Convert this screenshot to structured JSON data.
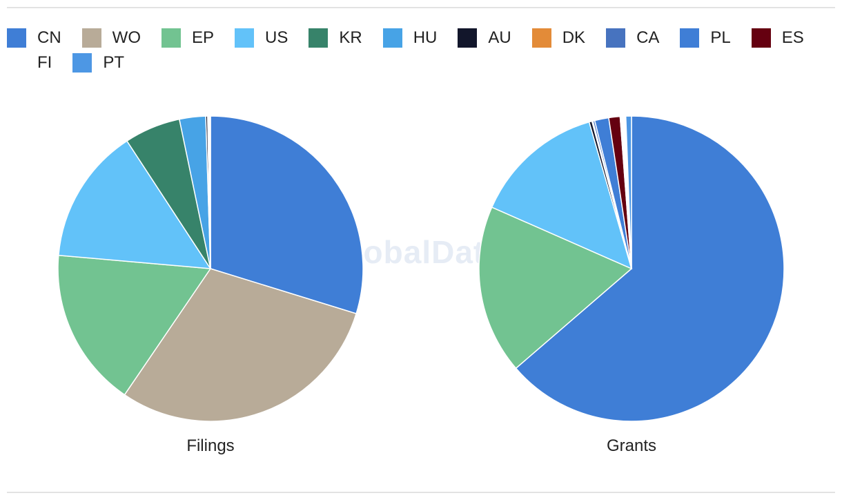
{
  "watermark": "GlobalData",
  "legend": [
    {
      "code": "CN",
      "color": "#3f7ed6"
    },
    {
      "code": "WO",
      "color": "#b8ab98"
    },
    {
      "code": "EP",
      "color": "#72c391"
    },
    {
      "code": "US",
      "color": "#62c2f9"
    },
    {
      "code": "KR",
      "color": "#37836a"
    },
    {
      "code": "HU",
      "color": "#47a3e6"
    },
    {
      "code": "AU",
      "color": "#12162b"
    },
    {
      "code": "DK",
      "color": "#e38b38"
    },
    {
      "code": "CA",
      "color": "#4773bf"
    },
    {
      "code": "PL",
      "color": "#3f7ed6"
    },
    {
      "code": "ES",
      "color": "#650010"
    },
    {
      "code": "FI",
      "color": "#ffffff"
    },
    {
      "code": "PT",
      "color": "#4d97e4"
    }
  ],
  "chart_data": [
    {
      "type": "pie",
      "title": "Filings",
      "slices": [
        {
          "label": "CN",
          "value": 30.0
        },
        {
          "label": "WO",
          "value": 30.0
        },
        {
          "label": "EP",
          "value": 17.0
        },
        {
          "label": "US",
          "value": 14.5
        },
        {
          "label": "KR",
          "value": 6.0
        },
        {
          "label": "HU",
          "value": 2.8
        },
        {
          "label": "AU",
          "value": 0.2
        },
        {
          "label": "DK",
          "value": 0.1
        },
        {
          "label": "CA",
          "value": 0.1
        },
        {
          "label": "PL",
          "value": 0.1
        }
      ]
    },
    {
      "type": "pie",
      "title": "Grants",
      "slices": [
        {
          "label": "CN",
          "value": 64.0
        },
        {
          "label": "EP",
          "value": 18.0
        },
        {
          "label": "US",
          "value": 14.0
        },
        {
          "label": "AU",
          "value": 0.3
        },
        {
          "label": "DK",
          "value": 0.1
        },
        {
          "label": "CA",
          "value": 0.2
        },
        {
          "label": "PL",
          "value": 1.5
        },
        {
          "label": "ES",
          "value": 1.2
        },
        {
          "label": "FI",
          "value": 0.6
        },
        {
          "label": "PT",
          "value": 0.6
        }
      ]
    }
  ]
}
